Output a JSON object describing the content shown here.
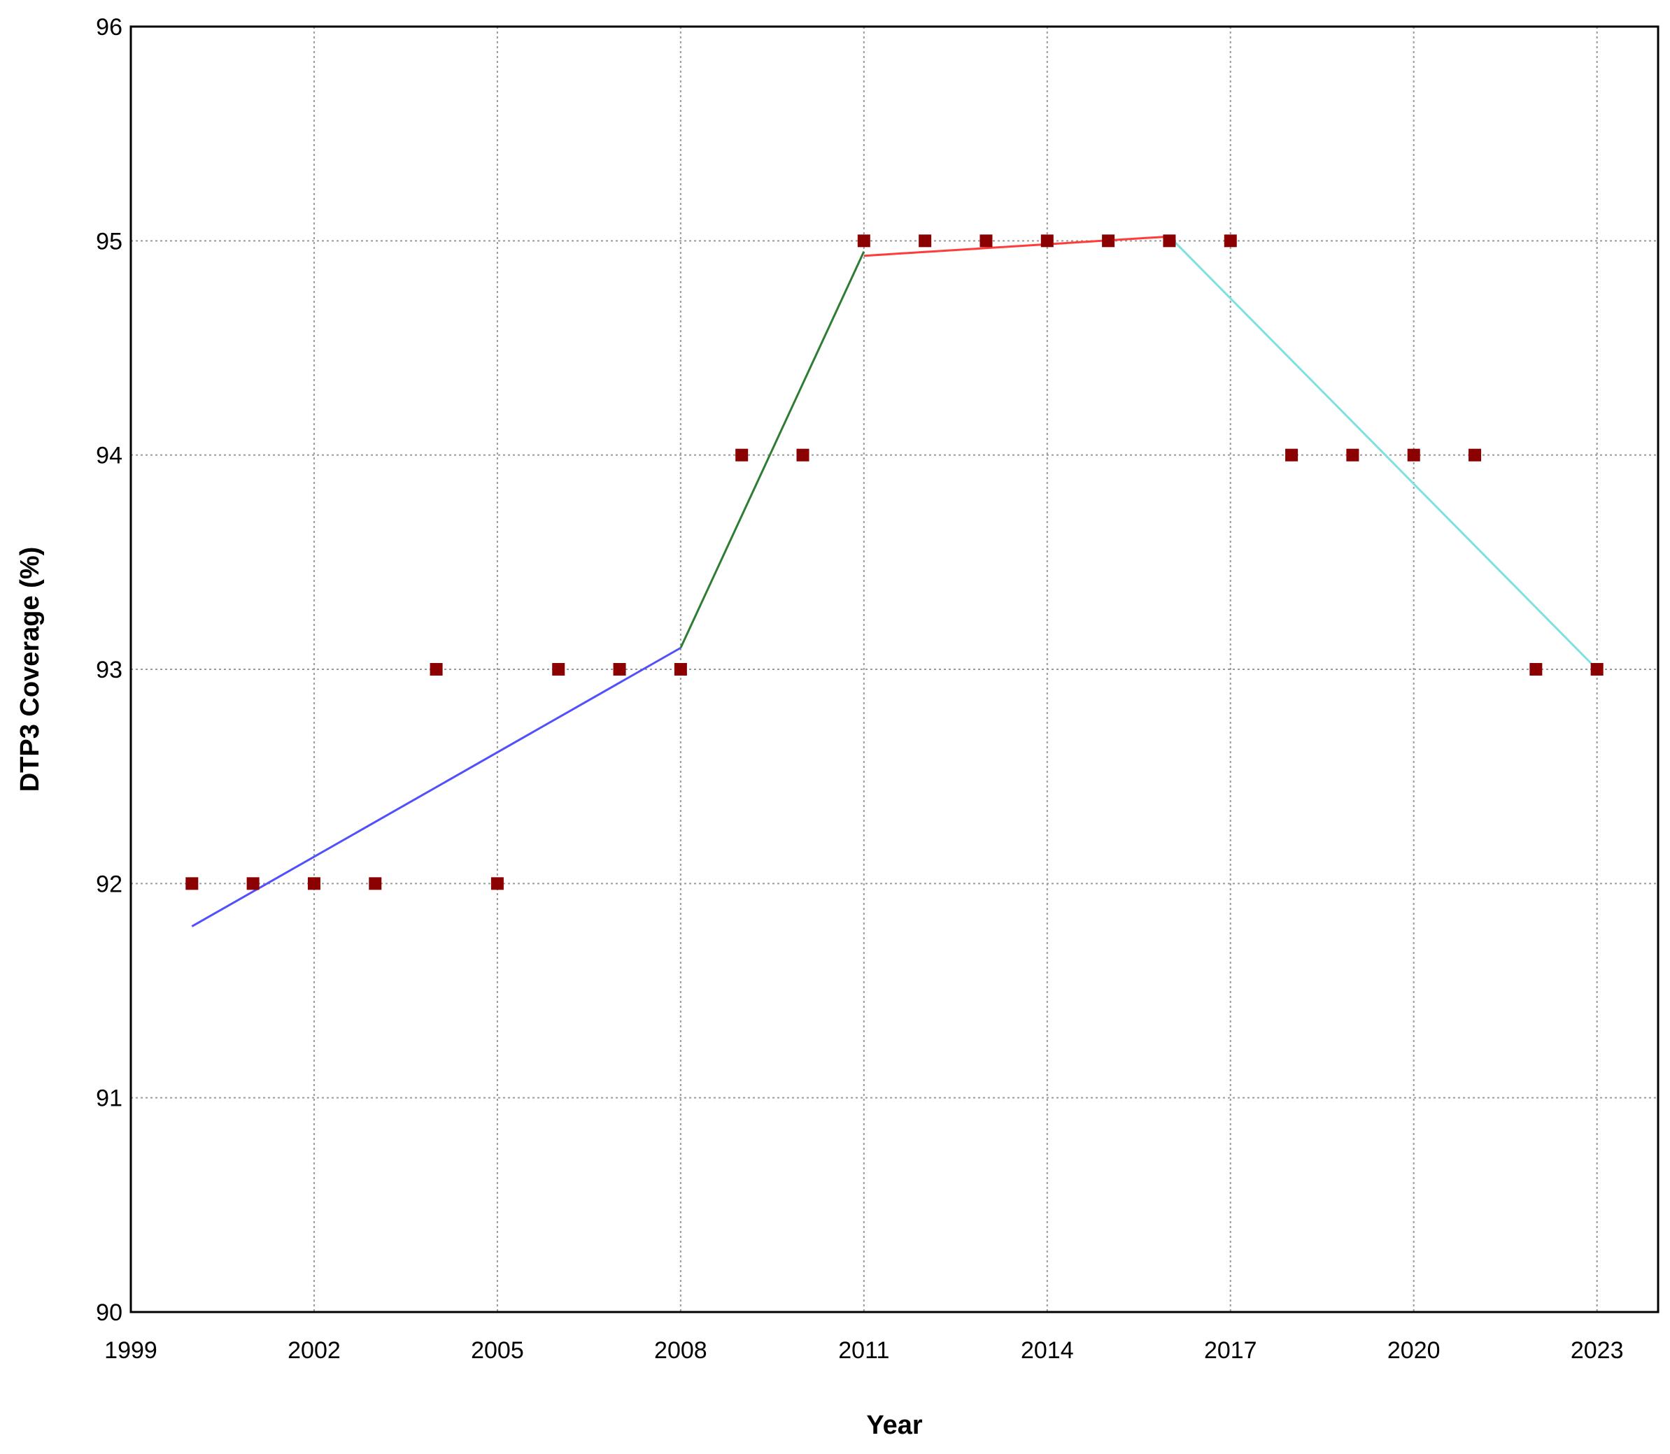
{
  "chart_data": {
    "type": "scatter",
    "title": "",
    "xlabel": "Year",
    "ylabel": "DTP3 Coverage (%)",
    "xlim": [
      1999,
      2024
    ],
    "ylim": [
      90,
      96
    ],
    "x_ticks": [
      1999,
      2002,
      2005,
      2008,
      2011,
      2014,
      2017,
      2020,
      2023
    ],
    "y_ticks": [
      90,
      91,
      92,
      93,
      94,
      95,
      96
    ],
    "grid": true,
    "legend": "none",
    "points": {
      "color": "#8b0000",
      "x": [
        2000,
        2001,
        2002,
        2003,
        2004,
        2005,
        2006,
        2007,
        2008,
        2009,
        2010,
        2011,
        2012,
        2013,
        2014,
        2015,
        2016,
        2017,
        2018,
        2019,
        2020,
        2021,
        2022,
        2023
      ],
      "y": [
        92,
        92,
        92,
        92,
        93,
        92,
        93,
        93,
        93,
        94,
        94,
        95,
        95,
        95,
        95,
        95,
        95,
        95,
        94,
        94,
        94,
        94,
        93,
        93
      ]
    },
    "trend_segments": [
      {
        "color": "#5050ff",
        "x": [
          2000,
          2008
        ],
        "y": [
          91.8,
          93.1
        ]
      },
      {
        "color": "#2e7d32",
        "x": [
          2008,
          2011
        ],
        "y": [
          93.1,
          94.95
        ]
      },
      {
        "color": "#ff3b3b",
        "x": [
          2011,
          2016
        ],
        "y": [
          94.93,
          95.02
        ]
      },
      {
        "color": "#7fe0e0",
        "x": [
          2016,
          2023
        ],
        "y": [
          95.02,
          93.0
        ]
      }
    ]
  }
}
